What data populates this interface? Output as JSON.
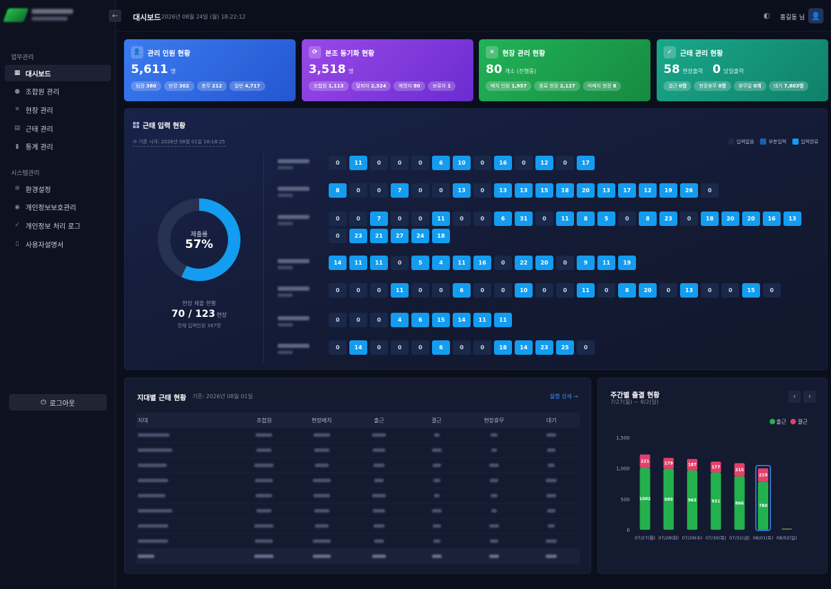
{
  "header": {
    "back_icon": "arrow-left-icon",
    "title": "대시보드",
    "datetime": "2026년 08월 24일 (월) 18:22:12",
    "user": "홍길동 님"
  },
  "sidebar": {
    "section1": "업무관리",
    "section2": "시스템관리",
    "items": [
      {
        "label": "대시보드",
        "icon": "dashboard-icon",
        "active": true
      },
      {
        "label": "조합원 관리",
        "icon": "user-icon"
      },
      {
        "label": "현장 관리",
        "icon": "tools-icon"
      },
      {
        "label": "근태 관리",
        "icon": "calendar-icon"
      },
      {
        "label": "통계 관리",
        "icon": "chart-icon"
      }
    ],
    "sys_items": [
      {
        "label": "환경설정",
        "icon": "gear-icon"
      },
      {
        "label": "개인정보보호관리",
        "icon": "shield-icon"
      },
      {
        "label": "개인정보 처리 로그",
        "icon": "log-icon"
      },
      {
        "label": "사용자설명서",
        "icon": "manual-icon"
      }
    ],
    "logout": "로그아웃"
  },
  "cards": [
    {
      "title": "관리 인원 현황",
      "value": "5,611",
      "unit": "명",
      "pills": [
        [
          "팀장",
          "380"
        ],
        [
          "반장",
          "302"
        ],
        [
          "총무",
          "212"
        ],
        [
          "일반",
          "4,717"
        ]
      ]
    },
    {
      "title": "본조 동기화 현황",
      "value": "3,518",
      "unit": "명",
      "pills": [
        [
          "조합원",
          "1,113"
        ],
        [
          "탈퇴자",
          "2,324"
        ],
        [
          "제명자",
          "80"
        ],
        [
          "보류자",
          "1"
        ]
      ]
    },
    {
      "title": "현장 관리 현황",
      "value": "80",
      "unit": "개소 (진행중)",
      "pills": [
        [
          "배치 인원",
          "1,957"
        ],
        [
          "종료 현장",
          "2,127"
        ],
        [
          "미배치 현장",
          "8"
        ]
      ]
    },
    {
      "title": "근태 관리 현황",
      "value": "58",
      "unit": "현장출력",
      "value2": "0",
      "unit2": "당일출력",
      "pills": [
        [
          "결근",
          "0명"
        ],
        [
          "현장휴무",
          "0명"
        ],
        [
          "휴무일",
          "0개"
        ],
        [
          "대기",
          "7,803명"
        ]
      ]
    }
  ],
  "attendance": {
    "title": "근태 입력 현황",
    "basis": "기준 시각: 2026년 08월 01일 18:18:25",
    "legend": [
      "입력없음",
      "부분입력",
      "입력완료"
    ],
    "legend_colors": [
      "#1a2849",
      "#1f5ea8",
      "#139cf0"
    ],
    "donut_label": "제출률",
    "donut_value": "57%",
    "donut_fraction": 0.57,
    "site_caption": "현장 제출 현황",
    "site_count": "70 / 123",
    "site_unit": "현장",
    "site_sub": "전체 입력인원 387명",
    "rows": [
      [
        0,
        11,
        0,
        0,
        0,
        6,
        10,
        0,
        16,
        0,
        12,
        0,
        17
      ],
      [
        8,
        0,
        0,
        7,
        0,
        0,
        13,
        0,
        13,
        13,
        15,
        18,
        20,
        13,
        17,
        12,
        19,
        26,
        0
      ],
      [
        0,
        0,
        7,
        0,
        0,
        11,
        0,
        0,
        6,
        31,
        0,
        11,
        8,
        5,
        0,
        8,
        23,
        0,
        18,
        20,
        20,
        16,
        13,
        0,
        23,
        21,
        27,
        24,
        18
      ],
      [
        14,
        11,
        11,
        0,
        5,
        4,
        11,
        16,
        0,
        22,
        20,
        0,
        9,
        11,
        19
      ],
      [
        0,
        0,
        0,
        11,
        0,
        0,
        6,
        0,
        0,
        10,
        0,
        0,
        11,
        0,
        8,
        20,
        0,
        13,
        0,
        0,
        15,
        0
      ],
      [
        0,
        0,
        0,
        4,
        6,
        15,
        14,
        11,
        11
      ],
      [
        0,
        14,
        0,
        0,
        0,
        6,
        0,
        0,
        18,
        14,
        23,
        25,
        0
      ]
    ]
  },
  "region": {
    "title": "지대별 근태 현황",
    "date": "기준: 2026년 08월 01일",
    "link": "월별 상세 →",
    "columns": [
      "지대",
      "조합원",
      "현장배치",
      "출근",
      "결근",
      "현장휴무",
      "대기"
    ],
    "row_count": 8
  },
  "weekly": {
    "title": "주간별 출결 현황",
    "range": "7/27(월) ~ 8/2(일)",
    "legend": [
      "출근",
      "결근"
    ]
  },
  "chart_data": {
    "type": "bar",
    "stacked": true,
    "categories": [
      "07/27(월)",
      "07/28(화)",
      "07/29(수)",
      "07/30(목)",
      "07/31(금)",
      "08/01(토)",
      "08/02(일)"
    ],
    "series": [
      {
        "name": "출근",
        "color": "#22b14c",
        "values": [
          1002,
          989,
          963,
          931,
          866,
          780,
          0
        ]
      },
      {
        "name": "결근",
        "color": "#e2406a",
        "values": [
          221,
          179,
          187,
          177,
          215,
          219,
          0
        ]
      }
    ],
    "ylim": [
      0,
      1500
    ],
    "yticks": [
      "0",
      "500",
      "1,000",
      "1,500"
    ],
    "highlight_index": 5
  }
}
